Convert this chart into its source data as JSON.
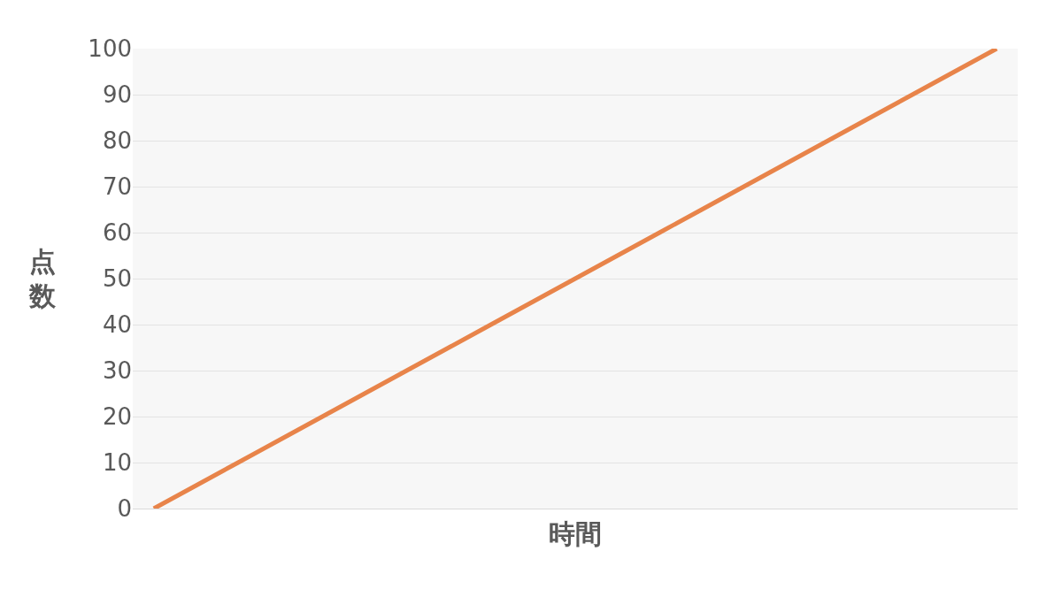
{
  "chart_data": {
    "type": "line",
    "xlabel": "時間",
    "ylabel": "点数",
    "categories": [
      null,
      null,
      null,
      null,
      null,
      null,
      null,
      null,
      null,
      null,
      null,
      null,
      null,
      null,
      null,
      null,
      null,
      null,
      null,
      null,
      null
    ],
    "series": [
      {
        "color": "#e8844a",
        "values": [
          0,
          5,
          10,
          15,
          20,
          25,
          30,
          35,
          40,
          45,
          50,
          55,
          60,
          65,
          70,
          75,
          80,
          85,
          90,
          95,
          100
        ]
      }
    ],
    "ylim": [
      0,
      100
    ],
    "yticks": [
      0,
      10,
      20,
      30,
      40,
      50,
      60,
      70,
      80,
      90,
      100
    ],
    "grid": "y",
    "line_style": "solid"
  }
}
